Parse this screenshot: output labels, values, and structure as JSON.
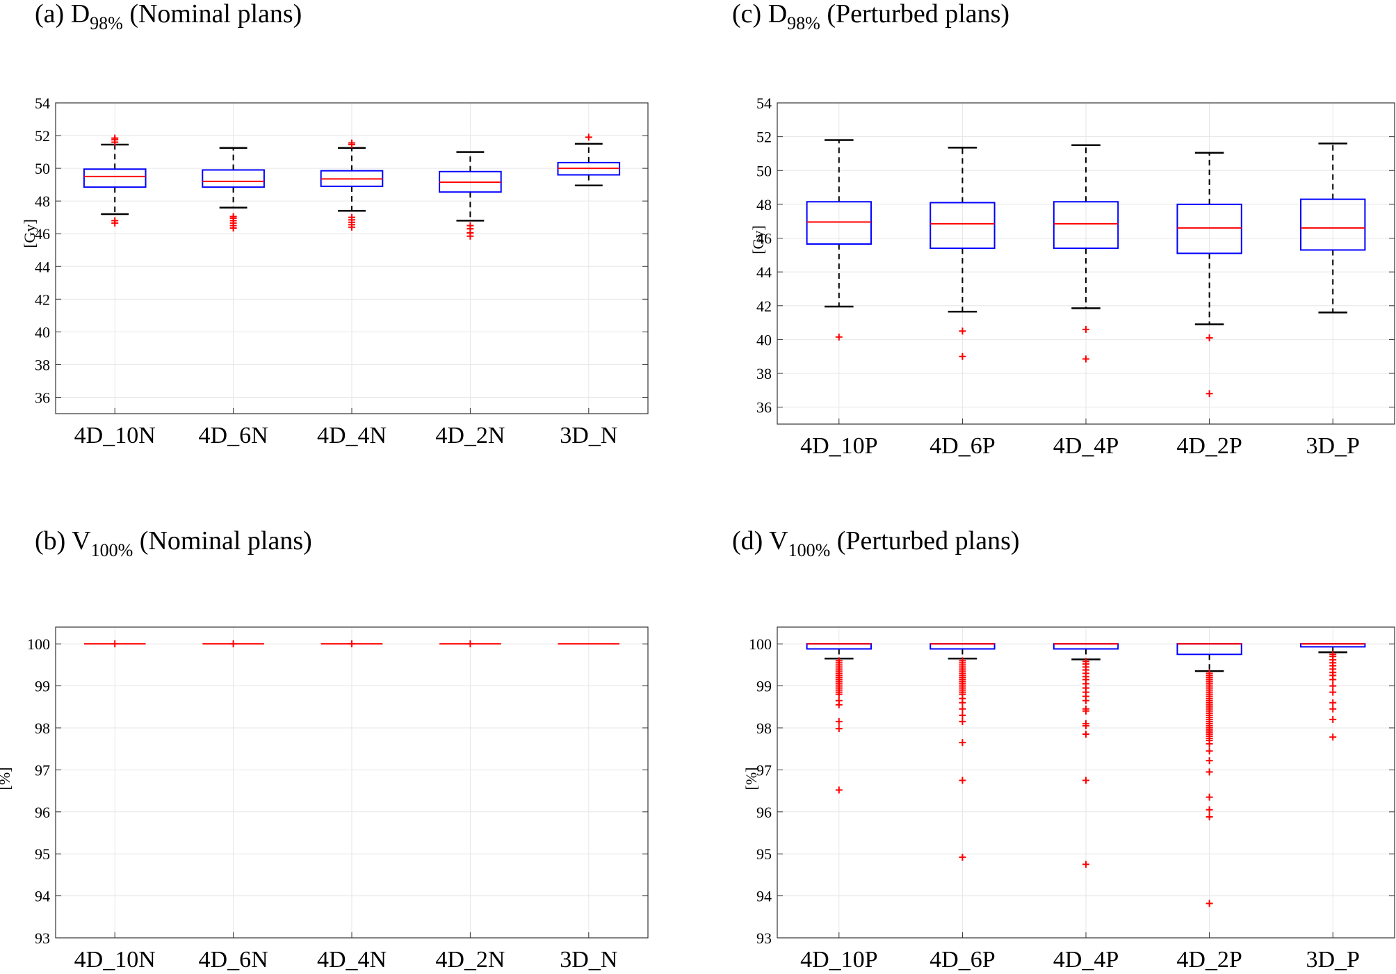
{
  "chart_data": [
    {
      "type": "box",
      "panel_label": "(a)",
      "title_main": "D",
      "title_sub": "98%",
      "title_rest": "(Nominal plans)",
      "ylabel": "[Gy]",
      "ylim": [
        35,
        54
      ],
      "yticks": [
        36,
        38,
        40,
        42,
        44,
        46,
        48,
        50,
        52,
        54
      ],
      "grid": true,
      "categories": [
        "4D_10N",
        "4D_6N",
        "4D_4N",
        "4D_2N",
        "3D_N"
      ],
      "boxes": [
        {
          "whisker_low": 47.2,
          "q1": 48.85,
          "median": 49.5,
          "q3": 49.95,
          "whisker_high": 51.45,
          "outliers": [
            46.65,
            46.8,
            51.6,
            51.75,
            51.85
          ]
        },
        {
          "whisker_low": 47.6,
          "q1": 48.85,
          "median": 49.2,
          "q3": 49.9,
          "whisker_high": 51.25,
          "outliers": [
            46.35,
            46.5,
            46.65,
            46.8,
            46.95,
            47.05
          ]
        },
        {
          "whisker_low": 47.4,
          "q1": 48.9,
          "median": 49.35,
          "q3": 49.85,
          "whisker_high": 51.25,
          "outliers": [
            46.4,
            46.55,
            46.7,
            46.85,
            47.0,
            51.45,
            51.55
          ]
        },
        {
          "whisker_low": 46.8,
          "q1": 48.55,
          "median": 49.15,
          "q3": 49.8,
          "whisker_high": 51.0,
          "outliers": [
            45.85,
            46.05,
            46.3,
            46.5
          ]
        },
        {
          "whisker_low": 48.95,
          "q1": 49.6,
          "median": 50.0,
          "q3": 50.35,
          "whisker_high": 51.5,
          "outliers": [
            51.9
          ]
        }
      ]
    },
    {
      "type": "box",
      "panel_label": "(b)",
      "title_main": "V",
      "title_sub": "100%",
      "title_rest": "(Nominal plans)",
      "ylabel": "[%]",
      "ylim": [
        93,
        100.4
      ],
      "yticks": [
        93,
        94,
        95,
        96,
        97,
        98,
        99,
        100
      ],
      "grid": true,
      "categories": [
        "4D_10N",
        "4D_6N",
        "4D_4N",
        "4D_2N",
        "3D_N"
      ],
      "boxes": [
        {
          "whisker_low": 100,
          "q1": 100,
          "median": 100,
          "q3": 100,
          "whisker_high": 100,
          "outliers": [
            100
          ]
        },
        {
          "whisker_low": 100,
          "q1": 100,
          "median": 100,
          "q3": 100,
          "whisker_high": 100,
          "outliers": [
            100
          ]
        },
        {
          "whisker_low": 100,
          "q1": 100,
          "median": 100,
          "q3": 100,
          "whisker_high": 100,
          "outliers": [
            100
          ]
        },
        {
          "whisker_low": 100,
          "q1": 100,
          "median": 100,
          "q3": 100,
          "whisker_high": 100,
          "outliers": [
            100
          ]
        },
        {
          "whisker_low": 100,
          "q1": 100,
          "median": 100,
          "q3": 100,
          "whisker_high": 100,
          "outliers": []
        }
      ]
    },
    {
      "type": "box",
      "panel_label": "(c)",
      "title_main": "D",
      "title_sub": "98%",
      "title_rest": "(Perturbed plans)",
      "ylabel": "[Gy]",
      "ylim": [
        35,
        54
      ],
      "yticks": [
        36,
        38,
        40,
        42,
        44,
        46,
        48,
        50,
        52,
        54
      ],
      "grid": true,
      "categories": [
        "4D_10P",
        "4D_6P",
        "4D_4P",
        "4D_2P",
        "3D_P"
      ],
      "boxes": [
        {
          "whisker_low": 41.95,
          "q1": 45.65,
          "median": 46.95,
          "q3": 48.15,
          "whisker_high": 51.8,
          "outliers": [
            40.15
          ]
        },
        {
          "whisker_low": 41.65,
          "q1": 45.4,
          "median": 46.85,
          "q3": 48.1,
          "whisker_high": 51.35,
          "outliers": [
            40.5,
            39.0
          ]
        },
        {
          "whisker_low": 41.85,
          "q1": 45.4,
          "median": 46.85,
          "q3": 48.15,
          "whisker_high": 51.5,
          "outliers": [
            40.6,
            38.85
          ]
        },
        {
          "whisker_low": 40.9,
          "q1": 45.1,
          "median": 46.6,
          "q3": 48.0,
          "whisker_high": 51.05,
          "outliers": [
            40.1,
            36.8
          ]
        },
        {
          "whisker_low": 41.6,
          "q1": 45.3,
          "median": 46.6,
          "q3": 48.3,
          "whisker_high": 51.6,
          "outliers": []
        }
      ]
    },
    {
      "type": "box",
      "panel_label": "(d)",
      "title_main": "V",
      "title_sub": "100%",
      "title_rest": "(Perturbed plans)",
      "ylabel": "[%]",
      "ylim": [
        93,
        100.4
      ],
      "yticks": [
        93,
        94,
        95,
        96,
        97,
        98,
        99,
        100
      ],
      "grid": true,
      "categories": [
        "4D_10P",
        "4D_6P",
        "4D_4P",
        "4D_2P",
        "3D_P"
      ],
      "boxes": [
        {
          "whisker_low": 99.65,
          "q1": 99.88,
          "median": 100,
          "q3": 100,
          "whisker_high": 100,
          "outliers": [
            99.6,
            99.55,
            99.5,
            99.45,
            99.4,
            99.35,
            99.3,
            99.25,
            99.2,
            99.15,
            99.1,
            99.05,
            99.0,
            98.95,
            98.9,
            98.85,
            98.8,
            98.65,
            98.55,
            98.15,
            97.98,
            96.52
          ]
        },
        {
          "whisker_low": 99.65,
          "q1": 99.88,
          "median": 100,
          "q3": 100,
          "whisker_high": 100,
          "outliers": [
            99.6,
            99.55,
            99.5,
            99.45,
            99.4,
            99.35,
            99.3,
            99.25,
            99.2,
            99.15,
            99.1,
            99.05,
            99.0,
            98.95,
            98.9,
            98.85,
            98.8,
            98.7,
            98.6,
            98.45,
            98.3,
            98.15,
            97.65,
            96.75,
            94.92
          ]
        },
        {
          "whisker_low": 99.63,
          "q1": 99.88,
          "median": 100,
          "q3": 100,
          "whisker_high": 100,
          "outliers": [
            99.58,
            99.52,
            99.45,
            99.38,
            99.3,
            99.22,
            99.15,
            99.05,
            98.95,
            98.85,
            98.75,
            98.65,
            98.45,
            98.4,
            98.1,
            98.05,
            97.85,
            96.75,
            94.75
          ]
        },
        {
          "whisker_low": 99.35,
          "q1": 99.75,
          "median": 100,
          "q3": 100,
          "whisker_high": 100,
          "outliers": [
            99.3,
            99.25,
            99.2,
            99.15,
            99.1,
            99.05,
            99.0,
            98.95,
            98.9,
            98.85,
            98.8,
            98.75,
            98.7,
            98.65,
            98.6,
            98.55,
            98.5,
            98.45,
            98.4,
            98.35,
            98.3,
            98.25,
            98.2,
            98.15,
            98.1,
            98.05,
            98.0,
            97.95,
            97.9,
            97.85,
            97.8,
            97.75,
            97.7,
            97.62,
            97.45,
            97.22,
            96.95,
            96.35,
            96.05,
            95.88,
            93.82
          ]
        },
        {
          "whisker_low": 99.8,
          "q1": 99.93,
          "median": 100,
          "q3": 100,
          "whisker_high": 100,
          "outliers": [
            99.75,
            99.7,
            99.62,
            99.55,
            99.48,
            99.4,
            99.32,
            99.25,
            99.15,
            99.0,
            98.85,
            98.6,
            98.45,
            98.2,
            97.78
          ]
        }
      ]
    }
  ]
}
